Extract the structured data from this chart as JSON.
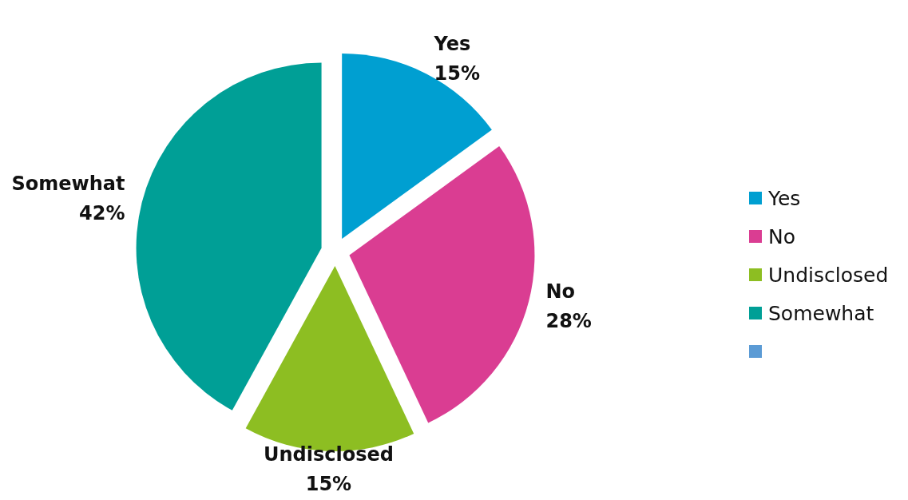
{
  "chart_data": {
    "type": "pie",
    "categories": [
      "Yes",
      "No",
      "Undisclosed",
      "Somewhat",
      null
    ],
    "values": [
      15,
      28,
      15,
      42,
      0
    ],
    "colors": [
      "#009fd1",
      "#da3d92",
      "#8dbe22",
      "#009f96",
      "#5b9bd5"
    ],
    "value_labels": [
      "15%",
      "28%",
      "15%",
      "42%",
      null
    ],
    "legend": "right"
  }
}
